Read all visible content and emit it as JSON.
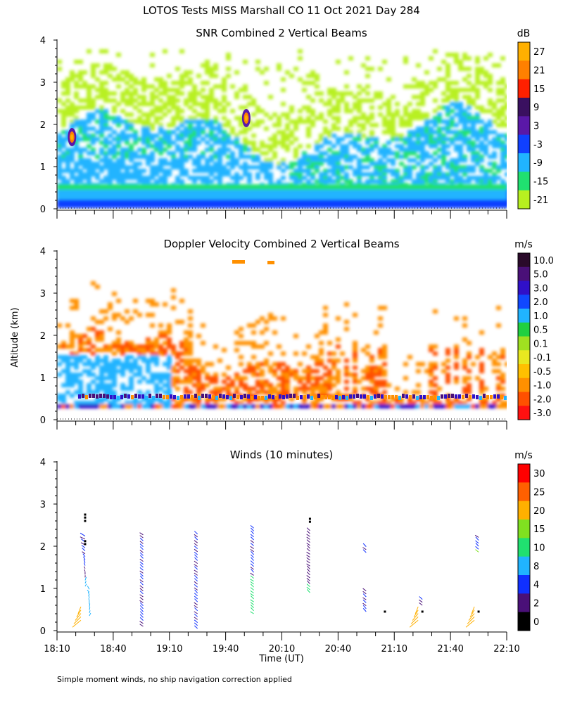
{
  "figure": {
    "title": "LOTOS Tests MISS Marshall CO  11 Oct 2021 Day 284",
    "ylabel": "Altitude (km)",
    "xlabel": "Time (UT)",
    "footnote": "Simple moment winds, no ship navigation correction applied"
  },
  "chart_data": [
    {
      "type": "heatmap",
      "title": "SNR Combined 2 Vertical Beams",
      "ylabel": "Altitude (km)",
      "ylim": [
        0,
        4
      ],
      "yticks": [
        "0",
        "1",
        "2",
        "3",
        "4"
      ],
      "xlim": [
        "18:10",
        "22:10"
      ],
      "colorbar": {
        "unit": "dB",
        "labels": [
          "27",
          "21",
          "15",
          "9",
          "3",
          "-3",
          "-9",
          "-15",
          "-21"
        ],
        "colors": [
          "#ffb000",
          "#ff8000",
          "#ff2000",
          "#3a1060",
          "#5a18a8",
          "#1040ff",
          "#20b4ff",
          "#20e070",
          "#b8f020"
        ]
      },
      "features": [
        {
          "time": "18:18",
          "altitude_km": 1.7,
          "snr_db": 20
        },
        {
          "time": "19:51",
          "altitude_km": 2.15,
          "snr_db": 20
        }
      ]
    },
    {
      "type": "heatmap",
      "title": "Doppler Velocity Combined 2 Vertical Beams",
      "ylabel": "Altitude (km)",
      "ylim": [
        0,
        4
      ],
      "yticks": [
        "0",
        "1",
        "2",
        "3",
        "4"
      ],
      "xlim": [
        "18:10",
        "22:10"
      ],
      "colorbar": {
        "unit": "m/s",
        "labels": [
          "10.0",
          "5.0",
          "3.0",
          "2.0",
          "1.0",
          "0.5",
          "0.1",
          "-0.1",
          "-0.5",
          "-1.0",
          "-2.0",
          "-3.0"
        ],
        "colors": [
          "#2a0a2a",
          "#4a1078",
          "#3010c8",
          "#1048ff",
          "#20b4ff",
          "#20d040",
          "#a0e020",
          "#e8e820",
          "#ffc000",
          "#ff9000",
          "#ff5000",
          "#ff1010"
        ]
      }
    },
    {
      "type": "scatter",
      "title": "Winds (10 minutes)",
      "ylabel": "Altitude (km)",
      "xlabel": "Time (UT)",
      "ylim": [
        0,
        4
      ],
      "yticks": [
        "0",
        "1",
        "2",
        "3",
        "4"
      ],
      "xlim": [
        "18:10",
        "22:10"
      ],
      "xticks": [
        "18:10",
        "18:40",
        "19:10",
        "19:40",
        "20:10",
        "20:40",
        "21:10",
        "21:40",
        "22:10"
      ],
      "colorbar": {
        "unit": "m/s",
        "labels": [
          "30",
          "25",
          "20",
          "15",
          "10",
          "8",
          "4",
          "2",
          "0"
        ],
        "colors": [
          "#ff0000",
          "#ff6000",
          "#ffb000",
          "#80e020",
          "#20e070",
          "#20b4ff",
          "#1030ff",
          "#4a1078",
          "#000000"
        ]
      },
      "profile_times": [
        "18:25",
        "18:56",
        "19:25",
        "19:55",
        "20:25",
        "20:55",
        "21:25",
        "21:55"
      ]
    }
  ]
}
